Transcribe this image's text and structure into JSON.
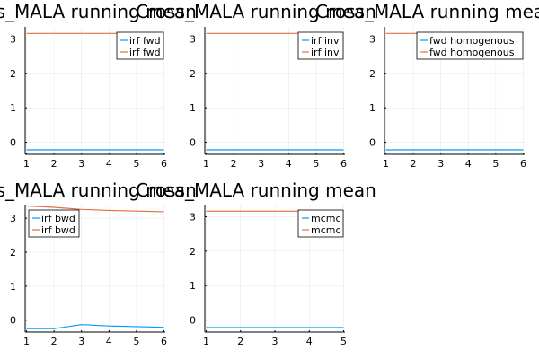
{
  "chart_data": [
    {
      "type": "line",
      "title": "Cross_MALA running mean",
      "x": [
        1,
        2,
        3,
        4,
        5,
        6
      ],
      "xlim": [
        0.95,
        6.05
      ],
      "ylim": [
        -0.35,
        3.35
      ],
      "xticks": [
        "1",
        "2",
        "3",
        "4",
        "5",
        "6"
      ],
      "yticks": [
        "0",
        "1",
        "2",
        "3"
      ],
      "grid": true,
      "legend_position": "top-right",
      "series": [
        {
          "name": "irf fwd",
          "color": "#009AFA",
          "values": [
            -0.22,
            -0.22,
            -0.22,
            -0.22,
            -0.22,
            -0.22
          ]
        },
        {
          "name": "irf fwd",
          "color": "#E36F47",
          "values": [
            3.16,
            3.16,
            3.16,
            3.16,
            3.16,
            3.16
          ]
        }
      ]
    },
    {
      "type": "line",
      "title": "Cross_MALA running mean",
      "x": [
        1,
        2,
        3,
        4,
        5,
        6
      ],
      "xlim": [
        0.95,
        6.05
      ],
      "ylim": [
        -0.35,
        3.35
      ],
      "xticks": [
        "1",
        "2",
        "3",
        "4",
        "5",
        "6"
      ],
      "yticks": [
        "0",
        "1",
        "2",
        "3"
      ],
      "grid": true,
      "legend_position": "top-right",
      "series": [
        {
          "name": "irf inv",
          "color": "#009AFA",
          "values": [
            -0.22,
            -0.22,
            -0.22,
            -0.22,
            -0.22,
            -0.22
          ]
        },
        {
          "name": "irf inv",
          "color": "#E36F47",
          "values": [
            3.16,
            3.16,
            3.16,
            3.16,
            3.16,
            3.16
          ]
        }
      ]
    },
    {
      "type": "line",
      "title": "Cross_MALA running mean",
      "x": [
        1,
        2,
        3,
        4,
        5,
        6
      ],
      "xlim": [
        0.95,
        6.05
      ],
      "ylim": [
        -0.35,
        3.35
      ],
      "xticks": [
        "1",
        "2",
        "3",
        "4",
        "5",
        "6"
      ],
      "yticks": [
        "0",
        "1",
        "2",
        "3"
      ],
      "grid": true,
      "legend_position": "top-right",
      "series": [
        {
          "name": "fwd homogenous",
          "color": "#009AFA",
          "values": [
            -0.22,
            -0.22,
            -0.22,
            -0.22,
            -0.22,
            -0.22
          ]
        },
        {
          "name": "fwd homogenous",
          "color": "#E36F47",
          "values": [
            3.16,
            3.16,
            3.16,
            3.16,
            3.16,
            3.16
          ]
        }
      ]
    },
    {
      "type": "line",
      "title": "Cross_MALA running mean",
      "x": [
        1,
        2,
        3,
        4,
        5,
        6
      ],
      "xlim": [
        0.95,
        6.05
      ],
      "ylim": [
        -0.35,
        3.4
      ],
      "xticks": [
        "1",
        "2",
        "3",
        "4",
        "5",
        "6"
      ],
      "yticks": [
        "0",
        "1",
        "2",
        "3"
      ],
      "grid": true,
      "legend_position": "top-left",
      "series": [
        {
          "name": "irf bwd",
          "color": "#009AFA",
          "values": [
            -0.25,
            -0.25,
            -0.13,
            -0.17,
            -0.19,
            -0.21
          ]
        },
        {
          "name": "irf bwd",
          "color": "#E36F47",
          "values": [
            3.36,
            3.32,
            3.26,
            3.23,
            3.21,
            3.19
          ]
        }
      ]
    },
    {
      "type": "line",
      "title": "Cross_MALA running mean",
      "x": [
        1,
        2,
        3,
        4,
        5
      ],
      "xlim": [
        0.96,
        5.04
      ],
      "ylim": [
        -0.35,
        3.35
      ],
      "xticks": [
        "1",
        "2",
        "3",
        "4",
        "5"
      ],
      "yticks": [
        "0",
        "1",
        "2",
        "3"
      ],
      "grid": true,
      "legend_position": "top-right",
      "series": [
        {
          "name": "mcmc",
          "color": "#009AFA",
          "values": [
            -0.22,
            -0.22,
            -0.22,
            -0.22,
            -0.22
          ]
        },
        {
          "name": "mcmc",
          "color": "#E36F47",
          "values": [
            3.16,
            3.16,
            3.16,
            3.16,
            3.16
          ]
        }
      ]
    }
  ]
}
